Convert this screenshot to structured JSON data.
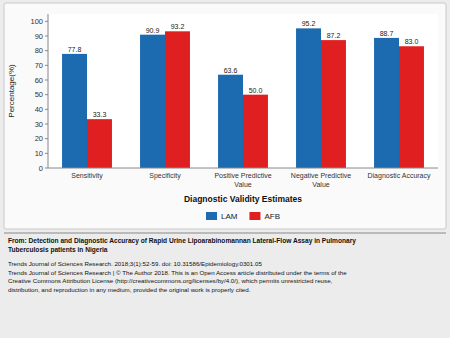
{
  "chart_data": {
    "type": "bar",
    "categories": [
      "Sensitivity",
      "Specificity",
      "Positive Predictive\nValue",
      "Negative Predictive\nValue",
      "Diagnostic Accuracy"
    ],
    "series": [
      {
        "name": "LAM",
        "color": "#1c6ab0",
        "values": [
          77.8,
          90.9,
          63.6,
          95.2,
          88.7
        ],
        "value_labels": [
          "77.8",
          "90.9",
          "63.6",
          "95.2",
          "88.7"
        ]
      },
      {
        "name": "AFB",
        "color": "#e02020",
        "values": [
          33.3,
          93.2,
          50.0,
          87.2,
          83.0
        ],
        "value_labels": [
          "33.3",
          "93.2",
          "50.0",
          "87.2",
          "83.0"
        ]
      }
    ],
    "xlabel": "Diagnostic Validity Estimates",
    "ylabel": "Percentage(%)",
    "ylim": [
      0,
      105
    ],
    "yticks": [
      0,
      10,
      20,
      30,
      40,
      50,
      60,
      70,
      80,
      90,
      100
    ],
    "grid": false,
    "legend": "bottom",
    "data_labels": true,
    "annotations": [
      "From: Detection and Diagnostic Accuracy of Rapid Urine Lipoarabinomannan Lateral-Flow Assay in Pulmonary\nTuberculosis patients in Nigeria",
      "Trends Journal of Sciences Research. 2018;3(1):52-59. doi: 10.31586/Epidemiology.0301.05\nTrends Journal of Sciences Research | © The Author 2018. This is an Open Access article distributed under the terms of the\nCreative Commons Attribution License (http://creativecommons.org/licenses/by/4.0/), which permits unrestricted reuse,\ndistribution, and reproduction in any medium, provided the original work is properly cited."
    ]
  }
}
